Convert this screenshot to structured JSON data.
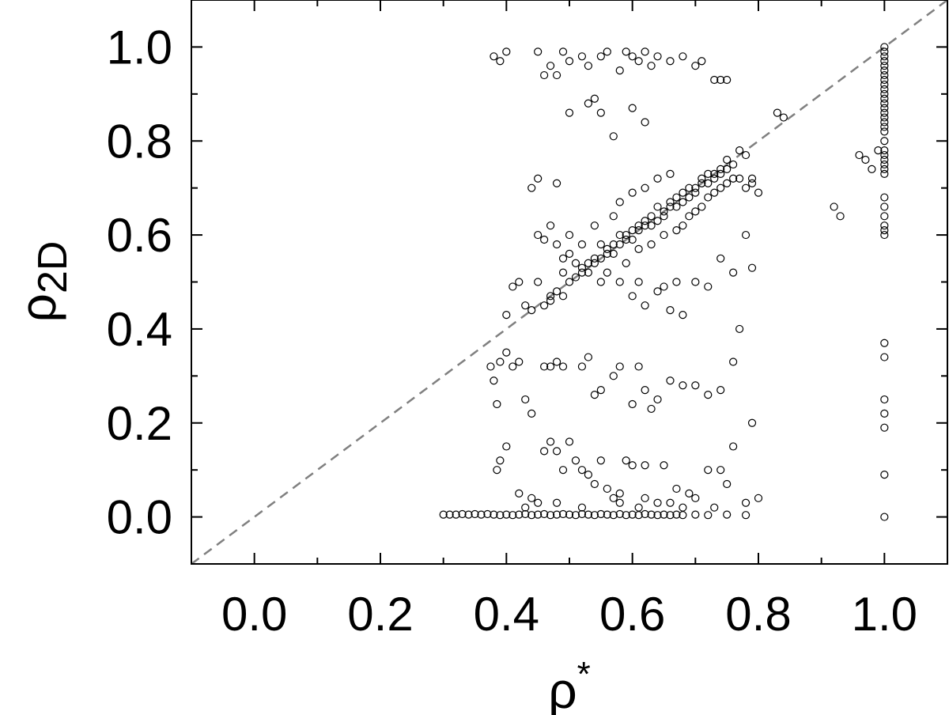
{
  "chart_data": {
    "type": "scatter",
    "xlabel": "ρ",
    "xlabel_superscript": "*",
    "ylabel": "ρ",
    "ylabel_subscript": "2D",
    "xlim": [
      -0.1,
      1.1
    ],
    "ylim": [
      -0.1,
      1.1
    ],
    "x_ticks": [
      "0.0",
      "0.2",
      "0.4",
      "0.6",
      "0.8",
      "1.0"
    ],
    "y_ticks": [
      "0.0",
      "0.2",
      "0.4",
      "0.6",
      "0.8",
      "1.0"
    ],
    "grid": false,
    "legend": "none",
    "marker": "open-circle",
    "marker_color": "#000000",
    "reference_line": {
      "style": "dashed",
      "color": "#808080",
      "from": [
        -0.1,
        -0.1
      ],
      "to": [
        1.1,
        1.1
      ]
    },
    "points": [
      [
        0.3,
        0.005
      ],
      [
        0.31,
        0.005
      ],
      [
        0.32,
        0.005
      ],
      [
        0.33,
        0.006
      ],
      [
        0.34,
        0.005
      ],
      [
        0.35,
        0.006
      ],
      [
        0.36,
        0.005
      ],
      [
        0.37,
        0.006
      ],
      [
        0.38,
        0.005
      ],
      [
        0.39,
        0.004
      ],
      [
        0.4,
        0.005
      ],
      [
        0.41,
        0.004
      ],
      [
        0.42,
        0.005
      ],
      [
        0.43,
        0.006
      ],
      [
        0.44,
        0.004
      ],
      [
        0.45,
        0.005
      ],
      [
        0.46,
        0.006
      ],
      [
        0.47,
        0.004
      ],
      [
        0.48,
        0.005
      ],
      [
        0.49,
        0.006
      ],
      [
        0.5,
        0.005
      ],
      [
        0.51,
        0.004
      ],
      [
        0.52,
        0.006
      ],
      [
        0.53,
        0.005
      ],
      [
        0.54,
        0.004
      ],
      [
        0.55,
        0.006
      ],
      [
        0.56,
        0.005
      ],
      [
        0.57,
        0.004
      ],
      [
        0.58,
        0.006
      ],
      [
        0.59,
        0.004
      ],
      [
        0.6,
        0.005
      ],
      [
        0.61,
        0.004
      ],
      [
        0.62,
        0.006
      ],
      [
        0.63,
        0.005
      ],
      [
        0.64,
        0.004
      ],
      [
        0.65,
        0.005
      ],
      [
        0.66,
        0.004
      ],
      [
        0.67,
        0.005
      ],
      [
        0.68,
        0.004
      ],
      [
        0.7,
        0.005
      ],
      [
        0.72,
        0.004
      ],
      [
        0.75,
        0.005
      ],
      [
        0.78,
        0.004
      ],
      [
        0.385,
        0.1
      ],
      [
        0.39,
        0.12
      ],
      [
        0.4,
        0.15
      ],
      [
        0.42,
        0.05
      ],
      [
        0.44,
        0.04
      ],
      [
        0.45,
        0.03
      ],
      [
        0.46,
        0.14
      ],
      [
        0.47,
        0.16
      ],
      [
        0.48,
        0.14
      ],
      [
        0.49,
        0.1
      ],
      [
        0.5,
        0.16
      ],
      [
        0.51,
        0.12
      ],
      [
        0.52,
        0.1
      ],
      [
        0.53,
        0.09
      ],
      [
        0.54,
        0.07
      ],
      [
        0.55,
        0.12
      ],
      [
        0.56,
        0.06
      ],
      [
        0.57,
        0.04
      ],
      [
        0.58,
        0.03
      ],
      [
        0.59,
        0.12
      ],
      [
        0.6,
        0.11
      ],
      [
        0.61,
        0.02
      ],
      [
        0.62,
        0.11
      ],
      [
        0.64,
        0.03
      ],
      [
        0.65,
        0.11
      ],
      [
        0.67,
        0.06
      ],
      [
        0.68,
        0.02
      ],
      [
        0.7,
        0.04
      ],
      [
        0.72,
        0.1
      ],
      [
        0.74,
        0.1
      ],
      [
        0.75,
        0.07
      ],
      [
        0.76,
        0.15
      ],
      [
        0.78,
        0.03
      ],
      [
        0.8,
        0.04
      ],
      [
        0.52,
        0.02
      ],
      [
        0.48,
        0.03
      ],
      [
        0.43,
        0.02
      ],
      [
        0.58,
        0.05
      ],
      [
        0.62,
        0.04
      ],
      [
        0.66,
        0.03
      ],
      [
        0.69,
        0.05
      ],
      [
        0.73,
        0.02
      ],
      [
        0.375,
        0.32
      ],
      [
        0.38,
        0.29
      ],
      [
        0.385,
        0.24
      ],
      [
        0.39,
        0.33
      ],
      [
        0.4,
        0.35
      ],
      [
        0.41,
        0.32
      ],
      [
        0.42,
        0.33
      ],
      [
        0.43,
        0.25
      ],
      [
        0.44,
        0.22
      ],
      [
        0.46,
        0.32
      ],
      [
        0.47,
        0.32
      ],
      [
        0.48,
        0.33
      ],
      [
        0.49,
        0.32
      ],
      [
        0.52,
        0.32
      ],
      [
        0.53,
        0.34
      ],
      [
        0.54,
        0.26
      ],
      [
        0.55,
        0.27
      ],
      [
        0.57,
        0.3
      ],
      [
        0.58,
        0.32
      ],
      [
        0.6,
        0.24
      ],
      [
        0.61,
        0.32
      ],
      [
        0.62,
        0.27
      ],
      [
        0.63,
        0.23
      ],
      [
        0.64,
        0.25
      ],
      [
        0.66,
        0.29
      ],
      [
        0.68,
        0.28
      ],
      [
        0.7,
        0.28
      ],
      [
        0.72,
        0.26
      ],
      [
        0.74,
        0.27
      ],
      [
        0.76,
        0.33
      ],
      [
        0.77,
        0.4
      ],
      [
        0.79,
        0.2
      ],
      [
        0.4,
        0.43
      ],
      [
        0.41,
        0.49
      ],
      [
        0.42,
        0.5
      ],
      [
        0.43,
        0.45
      ],
      [
        0.44,
        0.44
      ],
      [
        0.45,
        0.5
      ],
      [
        0.46,
        0.59
      ],
      [
        0.47,
        0.47
      ],
      [
        0.48,
        0.58
      ],
      [
        0.49,
        0.52
      ],
      [
        0.5,
        0.56
      ],
      [
        0.51,
        0.54
      ],
      [
        0.52,
        0.52
      ],
      [
        0.53,
        0.54
      ],
      [
        0.54,
        0.55
      ],
      [
        0.55,
        0.58
      ],
      [
        0.56,
        0.56
      ],
      [
        0.57,
        0.58
      ],
      [
        0.58,
        0.6
      ],
      [
        0.59,
        0.59
      ],
      [
        0.6,
        0.61
      ],
      [
        0.61,
        0.62
      ],
      [
        0.62,
        0.63
      ],
      [
        0.63,
        0.62
      ],
      [
        0.64,
        0.66
      ],
      [
        0.65,
        0.64
      ],
      [
        0.66,
        0.66
      ],
      [
        0.67,
        0.68
      ],
      [
        0.68,
        0.67
      ],
      [
        0.69,
        0.7
      ],
      [
        0.7,
        0.69
      ],
      [
        0.71,
        0.71
      ],
      [
        0.72,
        0.73
      ],
      [
        0.73,
        0.72
      ],
      [
        0.74,
        0.74
      ],
      [
        0.75,
        0.76
      ],
      [
        0.76,
        0.75
      ],
      [
        0.77,
        0.78
      ],
      [
        0.78,
        0.77
      ],
      [
        0.79,
        0.72
      ],
      [
        0.46,
        0.45
      ],
      [
        0.47,
        0.46
      ],
      [
        0.48,
        0.48
      ],
      [
        0.49,
        0.47
      ],
      [
        0.5,
        0.5
      ],
      [
        0.51,
        0.51
      ],
      [
        0.52,
        0.53
      ],
      [
        0.53,
        0.52
      ],
      [
        0.54,
        0.54
      ],
      [
        0.55,
        0.55
      ],
      [
        0.56,
        0.57
      ],
      [
        0.57,
        0.56
      ],
      [
        0.58,
        0.58
      ],
      [
        0.59,
        0.6
      ],
      [
        0.6,
        0.59
      ],
      [
        0.61,
        0.61
      ],
      [
        0.62,
        0.62
      ],
      [
        0.63,
        0.64
      ],
      [
        0.64,
        0.63
      ],
      [
        0.65,
        0.65
      ],
      [
        0.66,
        0.67
      ],
      [
        0.67,
        0.66
      ],
      [
        0.68,
        0.69
      ],
      [
        0.69,
        0.68
      ],
      [
        0.7,
        0.7
      ],
      [
        0.71,
        0.72
      ],
      [
        0.72,
        0.71
      ],
      [
        0.73,
        0.73
      ],
      [
        0.74,
        0.73
      ],
      [
        0.75,
        0.74
      ],
      [
        0.45,
        0.6
      ],
      [
        0.47,
        0.62
      ],
      [
        0.49,
        0.55
      ],
      [
        0.5,
        0.6
      ],
      [
        0.52,
        0.58
      ],
      [
        0.54,
        0.62
      ],
      [
        0.55,
        0.5
      ],
      [
        0.56,
        0.52
      ],
      [
        0.57,
        0.64
      ],
      [
        0.58,
        0.67
      ],
      [
        0.59,
        0.54
      ],
      [
        0.6,
        0.69
      ],
      [
        0.61,
        0.57
      ],
      [
        0.62,
        0.7
      ],
      [
        0.63,
        0.58
      ],
      [
        0.64,
        0.72
      ],
      [
        0.65,
        0.6
      ],
      [
        0.66,
        0.73
      ],
      [
        0.67,
        0.61
      ],
      [
        0.68,
        0.62
      ],
      [
        0.69,
        0.64
      ],
      [
        0.7,
        0.65
      ],
      [
        0.71,
        0.66
      ],
      [
        0.72,
        0.68
      ],
      [
        0.73,
        0.69
      ],
      [
        0.74,
        0.7
      ],
      [
        0.75,
        0.71
      ],
      [
        0.76,
        0.72
      ],
      [
        0.77,
        0.72
      ],
      [
        0.78,
        0.7
      ],
      [
        0.79,
        0.71
      ],
      [
        0.8,
        0.69
      ],
      [
        0.58,
        0.5
      ],
      [
        0.6,
        0.47
      ],
      [
        0.61,
        0.5
      ],
      [
        0.62,
        0.45
      ],
      [
        0.64,
        0.48
      ],
      [
        0.66,
        0.44
      ],
      [
        0.68,
        0.43
      ],
      [
        0.7,
        0.5
      ],
      [
        0.72,
        0.49
      ],
      [
        0.74,
        0.55
      ],
      [
        0.76,
        0.52
      ],
      [
        0.78,
        0.6
      ],
      [
        0.79,
        0.53
      ],
      [
        0.65,
        0.49
      ],
      [
        0.67,
        0.5
      ],
      [
        0.38,
        0.98
      ],
      [
        0.39,
        0.97
      ],
      [
        0.4,
        0.99
      ],
      [
        0.45,
        0.99
      ],
      [
        0.46,
        0.94
      ],
      [
        0.47,
        0.96
      ],
      [
        0.48,
        0.94
      ],
      [
        0.49,
        0.99
      ],
      [
        0.5,
        0.97
      ],
      [
        0.52,
        0.98
      ],
      [
        0.53,
        0.96
      ],
      [
        0.55,
        0.98
      ],
      [
        0.56,
        0.99
      ],
      [
        0.58,
        0.95
      ],
      [
        0.59,
        0.99
      ],
      [
        0.6,
        0.98
      ],
      [
        0.61,
        0.97
      ],
      [
        0.62,
        0.99
      ],
      [
        0.63,
        0.96
      ],
      [
        0.64,
        0.98
      ],
      [
        0.66,
        0.97
      ],
      [
        0.68,
        0.98
      ],
      [
        0.7,
        0.96
      ],
      [
        0.71,
        0.97
      ],
      [
        0.73,
        0.93
      ],
      [
        0.74,
        0.93
      ],
      [
        0.75,
        0.93
      ],
      [
        0.5,
        0.86
      ],
      [
        0.53,
        0.88
      ],
      [
        0.54,
        0.89
      ],
      [
        0.55,
        0.86
      ],
      [
        0.57,
        0.81
      ],
      [
        0.6,
        0.87
      ],
      [
        0.62,
        0.84
      ],
      [
        0.44,
        0.7
      ],
      [
        0.45,
        0.72
      ],
      [
        0.48,
        0.71
      ],
      [
        0.83,
        0.86
      ],
      [
        0.84,
        0.85
      ],
      [
        0.92,
        0.66
      ],
      [
        0.93,
        0.64
      ],
      [
        0.96,
        0.77
      ],
      [
        0.97,
        0.76
      ],
      [
        0.98,
        0.74
      ],
      [
        0.99,
        0.78
      ],
      [
        1.0,
        1.0
      ],
      [
        1.0,
        0.99
      ],
      [
        1.0,
        0.98
      ],
      [
        1.0,
        0.97
      ],
      [
        1.0,
        0.96
      ],
      [
        1.0,
        0.95
      ],
      [
        1.0,
        0.94
      ],
      [
        1.0,
        0.93
      ],
      [
        1.0,
        0.92
      ],
      [
        1.0,
        0.91
      ],
      [
        1.0,
        0.9
      ],
      [
        1.0,
        0.89
      ],
      [
        1.0,
        0.88
      ],
      [
        1.0,
        0.87
      ],
      [
        1.0,
        0.86
      ],
      [
        1.0,
        0.85
      ],
      [
        1.0,
        0.84
      ],
      [
        1.0,
        0.83
      ],
      [
        1.0,
        0.82
      ],
      [
        1.0,
        0.8
      ],
      [
        1.0,
        0.78
      ],
      [
        1.0,
        0.77
      ],
      [
        1.0,
        0.76
      ],
      [
        1.0,
        0.75
      ],
      [
        1.0,
        0.74
      ],
      [
        1.0,
        0.73
      ],
      [
        1.0,
        0.68
      ],
      [
        1.0,
        0.66
      ],
      [
        1.0,
        0.64
      ],
      [
        1.0,
        0.62
      ],
      [
        1.0,
        0.61
      ],
      [
        1.0,
        0.6
      ],
      [
        1.0,
        0.37
      ],
      [
        1.0,
        0.34
      ],
      [
        1.0,
        0.25
      ],
      [
        1.0,
        0.22
      ],
      [
        1.0,
        0.19
      ],
      [
        1.0,
        0.09
      ],
      [
        1.0,
        0.0
      ]
    ]
  }
}
